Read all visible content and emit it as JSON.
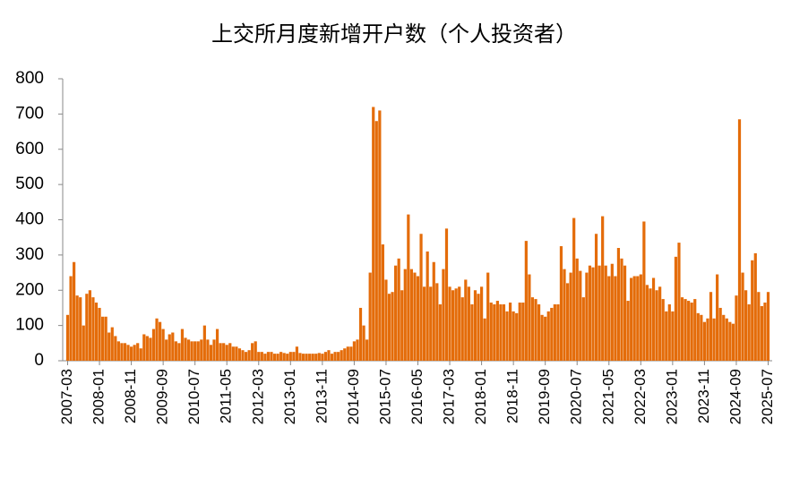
{
  "chart_data": {
    "type": "bar",
    "title": "上交所月度新增开户数（个人投资者）",
    "color": "#e46c0a",
    "ylim": [
      0,
      800
    ],
    "yticks": [
      0,
      100,
      200,
      300,
      400,
      500,
      600,
      700,
      800
    ],
    "grid": false,
    "categories": [
      "2007-03",
      null,
      null,
      null,
      null,
      null,
      null,
      null,
      null,
      null,
      "2008-01",
      null,
      null,
      null,
      null,
      null,
      null,
      null,
      null,
      null,
      "2008-11",
      null,
      null,
      null,
      null,
      null,
      null,
      null,
      null,
      null,
      "2009-09",
      null,
      null,
      null,
      null,
      null,
      null,
      null,
      null,
      null,
      "2010-07",
      null,
      null,
      null,
      null,
      null,
      null,
      null,
      null,
      null,
      "2011-05",
      null,
      null,
      null,
      null,
      null,
      null,
      null,
      null,
      null,
      "2012-03",
      null,
      null,
      null,
      null,
      null,
      null,
      null,
      null,
      null,
      "2013-01",
      null,
      null,
      null,
      null,
      null,
      null,
      null,
      null,
      null,
      "2013-11",
      null,
      null,
      null,
      null,
      null,
      null,
      null,
      null,
      null,
      "2014-09",
      null,
      null,
      null,
      null,
      null,
      null,
      null,
      null,
      null,
      "2015-07",
      null,
      null,
      null,
      null,
      null,
      null,
      null,
      null,
      null,
      "2016-05",
      null,
      null,
      null,
      null,
      null,
      null,
      null,
      null,
      null,
      "2017-03",
      null,
      null,
      null,
      null,
      null,
      null,
      null,
      null,
      null,
      "2018-01",
      null,
      null,
      null,
      null,
      null,
      null,
      null,
      null,
      null,
      "2018-11",
      null,
      null,
      null,
      null,
      null,
      null,
      null,
      null,
      null,
      "2019-09",
      null,
      null,
      null,
      null,
      null,
      null,
      null,
      null,
      null,
      "2020-07",
      null,
      null,
      null,
      null,
      null,
      null,
      null,
      null,
      null,
      "2021-05",
      null,
      null,
      null,
      null,
      null,
      null,
      null,
      null,
      null,
      "2022-03",
      null,
      null,
      null,
      null,
      null,
      null,
      null,
      null,
      null,
      "2023-01",
      null,
      null,
      null,
      null,
      null,
      null,
      null,
      null,
      null,
      "2023-11",
      null,
      null,
      null,
      null,
      null,
      null,
      null,
      null,
      null,
      "2024-09",
      null,
      null,
      null,
      null,
      null,
      null,
      null,
      null,
      null,
      "2025-07"
    ],
    "values": [
      130,
      240,
      280,
      185,
      180,
      100,
      190,
      200,
      180,
      165,
      150,
      125,
      125,
      80,
      95,
      70,
      55,
      50,
      50,
      45,
      40,
      45,
      50,
      35,
      75,
      70,
      65,
      90,
      120,
      110,
      90,
      60,
      75,
      80,
      55,
      50,
      90,
      65,
      60,
      55,
      55,
      55,
      60,
      100,
      60,
      45,
      60,
      90,
      50,
      50,
      45,
      50,
      40,
      40,
      35,
      30,
      25,
      30,
      50,
      55,
      25,
      25,
      20,
      25,
      25,
      20,
      20,
      25,
      22,
      20,
      25,
      25,
      40,
      22,
      20,
      20,
      20,
      20,
      20,
      22,
      20,
      25,
      30,
      20,
      25,
      25,
      30,
      35,
      40,
      40,
      55,
      60,
      150,
      100,
      60,
      250,
      720,
      680,
      710,
      330,
      230,
      190,
      195,
      270,
      290,
      200,
      260,
      415,
      260,
      250,
      240,
      360,
      210,
      310,
      210,
      280,
      220,
      160,
      260,
      375,
      210,
      200,
      205,
      210,
      180,
      230,
      210,
      160,
      200,
      190,
      210,
      120,
      250,
      165,
      160,
      170,
      160,
      160,
      140,
      165,
      140,
      135,
      165,
      165,
      340,
      245,
      180,
      175,
      160,
      130,
      125,
      140,
      150,
      160,
      160,
      325,
      260,
      220,
      250,
      405,
      290,
      255,
      180,
      250,
      270,
      265,
      360,
      270,
      410,
      270,
      240,
      275,
      240,
      320,
      290,
      270,
      170,
      235,
      240,
      240,
      245,
      395,
      215,
      205,
      235,
      200,
      210,
      175,
      140,
      160,
      140,
      295,
      335,
      180,
      175,
      170,
      165,
      175,
      135,
      130,
      110,
      120,
      195,
      120,
      245,
      150,
      130,
      120,
      110,
      105,
      185,
      685,
      250,
      200,
      160,
      285,
      305,
      195,
      155,
      165,
      195
    ]
  }
}
